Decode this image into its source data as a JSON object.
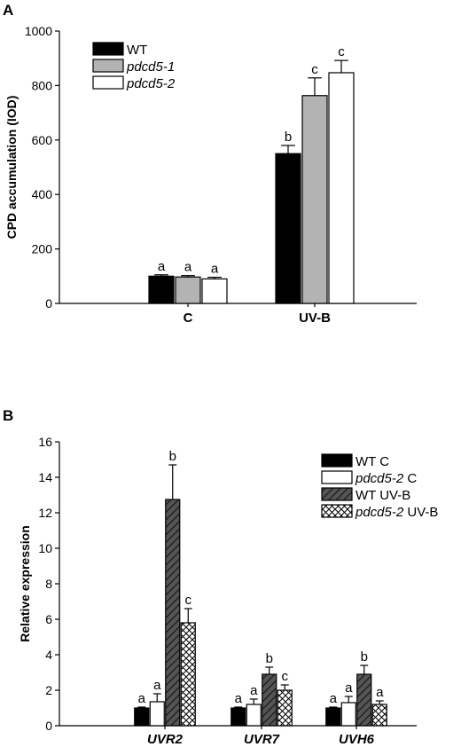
{
  "chart_data": [
    {
      "panel": "A",
      "type": "bar",
      "categories": [
        "C",
        "UV-B"
      ],
      "category_style": "bold",
      "ylabel": "CPD accumulation (IOD)",
      "ylim": [
        0,
        1000
      ],
      "yticks": [
        "0",
        "200",
        "400",
        "600",
        "800",
        "1000"
      ],
      "grid": false,
      "legend_position": "top-left",
      "series": [
        {
          "name": "WT",
          "name_parts": [
            {
              "text": "WT",
              "italic": false
            }
          ],
          "fill": "solid",
          "color": "#000000",
          "values": [
            100,
            550
          ],
          "errors": [
            5,
            30
          ],
          "significance": [
            "a",
            "b"
          ]
        },
        {
          "name": "pdcd5-1",
          "name_parts": [
            {
              "text": "pdcd5-1",
              "italic": true
            }
          ],
          "fill": "solid",
          "color": "#b3b3b3",
          "values": [
            97,
            763
          ],
          "errors": [
            5,
            65
          ],
          "significance": [
            "a",
            "c"
          ]
        },
        {
          "name": "pdcd5-2",
          "name_parts": [
            {
              "text": "pdcd5-2",
              "italic": true
            }
          ],
          "fill": "solid",
          "color": "#ffffff",
          "values": [
            90,
            847
          ],
          "errors": [
            6,
            45
          ],
          "significance": [
            "a",
            "c"
          ]
        }
      ]
    },
    {
      "panel": "B",
      "type": "bar",
      "categories": [
        "UVR2",
        "UVR7",
        "UVH6"
      ],
      "category_style": "bold-italic",
      "ylabel": "Relative expression",
      "ylim": [
        0,
        16
      ],
      "yticks": [
        "0",
        "2",
        "4",
        "6",
        "8",
        "10",
        "12",
        "14",
        "16"
      ],
      "grid": false,
      "legend_position": "top-right",
      "series": [
        {
          "name": "WT C",
          "name_parts": [
            {
              "text": "WT C",
              "italic": false
            }
          ],
          "fill": "solid",
          "color": "#000000",
          "values": [
            1.0,
            1.0,
            1.0
          ],
          "errors": [
            0.05,
            0.05,
            0.05
          ],
          "significance": [
            "a",
            "a",
            "a"
          ]
        },
        {
          "name": "pdcd5-2 C",
          "name_parts": [
            {
              "text": "pdcd5-2",
              "italic": true
            },
            {
              "text": " C",
              "italic": false
            }
          ],
          "fill": "solid",
          "color": "#ffffff",
          "values": [
            1.35,
            1.2,
            1.3
          ],
          "errors": [
            0.45,
            0.3,
            0.35
          ],
          "significance": [
            "a",
            "a",
            "a"
          ]
        },
        {
          "name": "WT UV-B",
          "name_parts": [
            {
              "text": "WT UV-B",
              "italic": false
            }
          ],
          "fill": "hatch",
          "color": "#555555",
          "values": [
            12.75,
            2.9,
            2.9
          ],
          "errors": [
            1.95,
            0.4,
            0.5
          ],
          "significance": [
            "b",
            "b",
            "b"
          ]
        },
        {
          "name": "pdcd5-2 UV-B",
          "name_parts": [
            {
              "text": "pdcd5-2",
              "italic": true
            },
            {
              "text": " UV-B",
              "italic": false
            }
          ],
          "fill": "crosshatch",
          "color": "#ffffff",
          "values": [
            5.8,
            2.0,
            1.2
          ],
          "errors": [
            0.8,
            0.3,
            0.2
          ],
          "significance": [
            "c",
            "c",
            "a"
          ]
        }
      ]
    }
  ]
}
